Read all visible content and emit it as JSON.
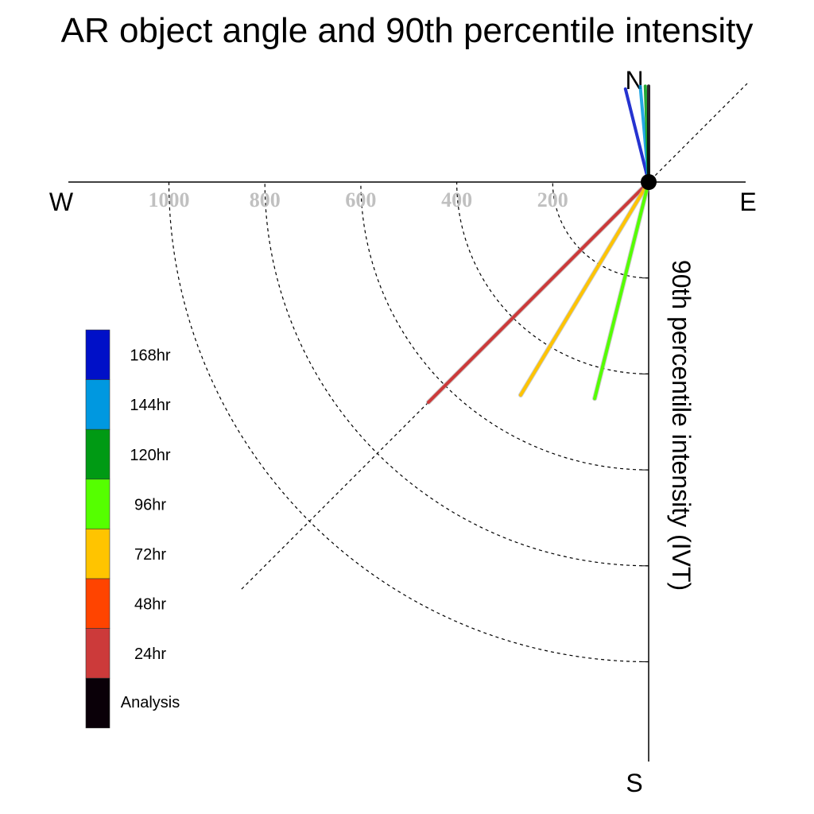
{
  "chart_data": {
    "type": "polar-vector",
    "title": "AR object angle and 90th percentile intensity",
    "ylabel": "90th percentile intensity (IVT)",
    "compass": {
      "north": "N",
      "south": "S",
      "east": "E",
      "west": "W"
    },
    "radial_ticks": [
      {
        "value": 200,
        "label": "200"
      },
      {
        "value": 400,
        "label": "400"
      },
      {
        "value": 600,
        "label": "600"
      },
      {
        "value": 800,
        "label": "800"
      },
      {
        "value": 1000,
        "label": "1000"
      }
    ],
    "rmax": 1200,
    "grid": true,
    "legend_position": "left",
    "series": [
      {
        "name": "168hr",
        "color": "#0010c8",
        "bearing": 346,
        "intensity": 200
      },
      {
        "name": "144hr",
        "color": "#0098e0",
        "bearing": 355,
        "intensity": 200
      },
      {
        "name": "120hr",
        "color": "#009a14",
        "bearing": 358,
        "intensity": 200
      },
      {
        "name": "96hr",
        "color": "#55ff00",
        "bearing": 194,
        "intensity": 465
      },
      {
        "name": "72hr",
        "color": "#ffc400",
        "bearing": 211,
        "intensity": 518
      },
      {
        "name": "48hr",
        "color": "#ff4400",
        "bearing": 0,
        "intensity": 0
      },
      {
        "name": "24hr",
        "color": "#cc3a3a",
        "bearing": 225,
        "intensity": 649
      },
      {
        "name": "Analysis",
        "color": "#0a0008",
        "bearing": 0,
        "intensity": 200
      }
    ]
  }
}
